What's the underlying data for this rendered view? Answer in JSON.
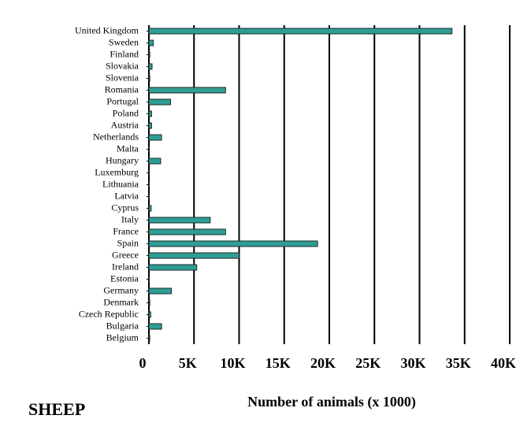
{
  "chart_data": {
    "type": "bar",
    "orientation": "horizontal",
    "title": "SHEEP",
    "x_label": "Number of animals (x 1000)",
    "categories": [
      "United Kingdom",
      "Sweden",
      "Finland",
      "Slovakia",
      "Slovenia",
      "Romania",
      "Portugal",
      "Poland",
      "Austria",
      "Netherlands",
      "Malta",
      "Hungary",
      "Luxemburg",
      "Lithuania",
      "Latvia",
      "Cyprus",
      "Italy",
      "France",
      "Spain",
      "Greece",
      "Ireland",
      "Estonia",
      "Germany",
      "Denmark",
      "Czech Republic",
      "Bulgaria",
      "Belgium"
    ],
    "values": [
      33600,
      500,
      100,
      350,
      100,
      8500,
      2400,
      300,
      300,
      1400,
      10,
      1300,
      10,
      20,
      30,
      250,
      6800,
      8500,
      18700,
      10000,
      5300,
      30,
      2500,
      100,
      200,
      1400,
      100
    ],
    "color": "#2e9e94",
    "xlim": [
      0,
      40000
    ],
    "xticks": [
      0,
      {
        "value": 5000,
        "label": "5K"
      },
      {
        "value": 10000,
        "label": "10K"
      },
      {
        "value": 15000,
        "label": "15K"
      },
      {
        "value": 20000,
        "label": "20K"
      },
      {
        "value": 25000,
        "label": "25K"
      },
      {
        "value": 30000,
        "label": "30K"
      },
      {
        "value": 35000,
        "label": "35K"
      },
      {
        "value": 40000,
        "label": "40K"
      }
    ],
    "grid": true
  }
}
